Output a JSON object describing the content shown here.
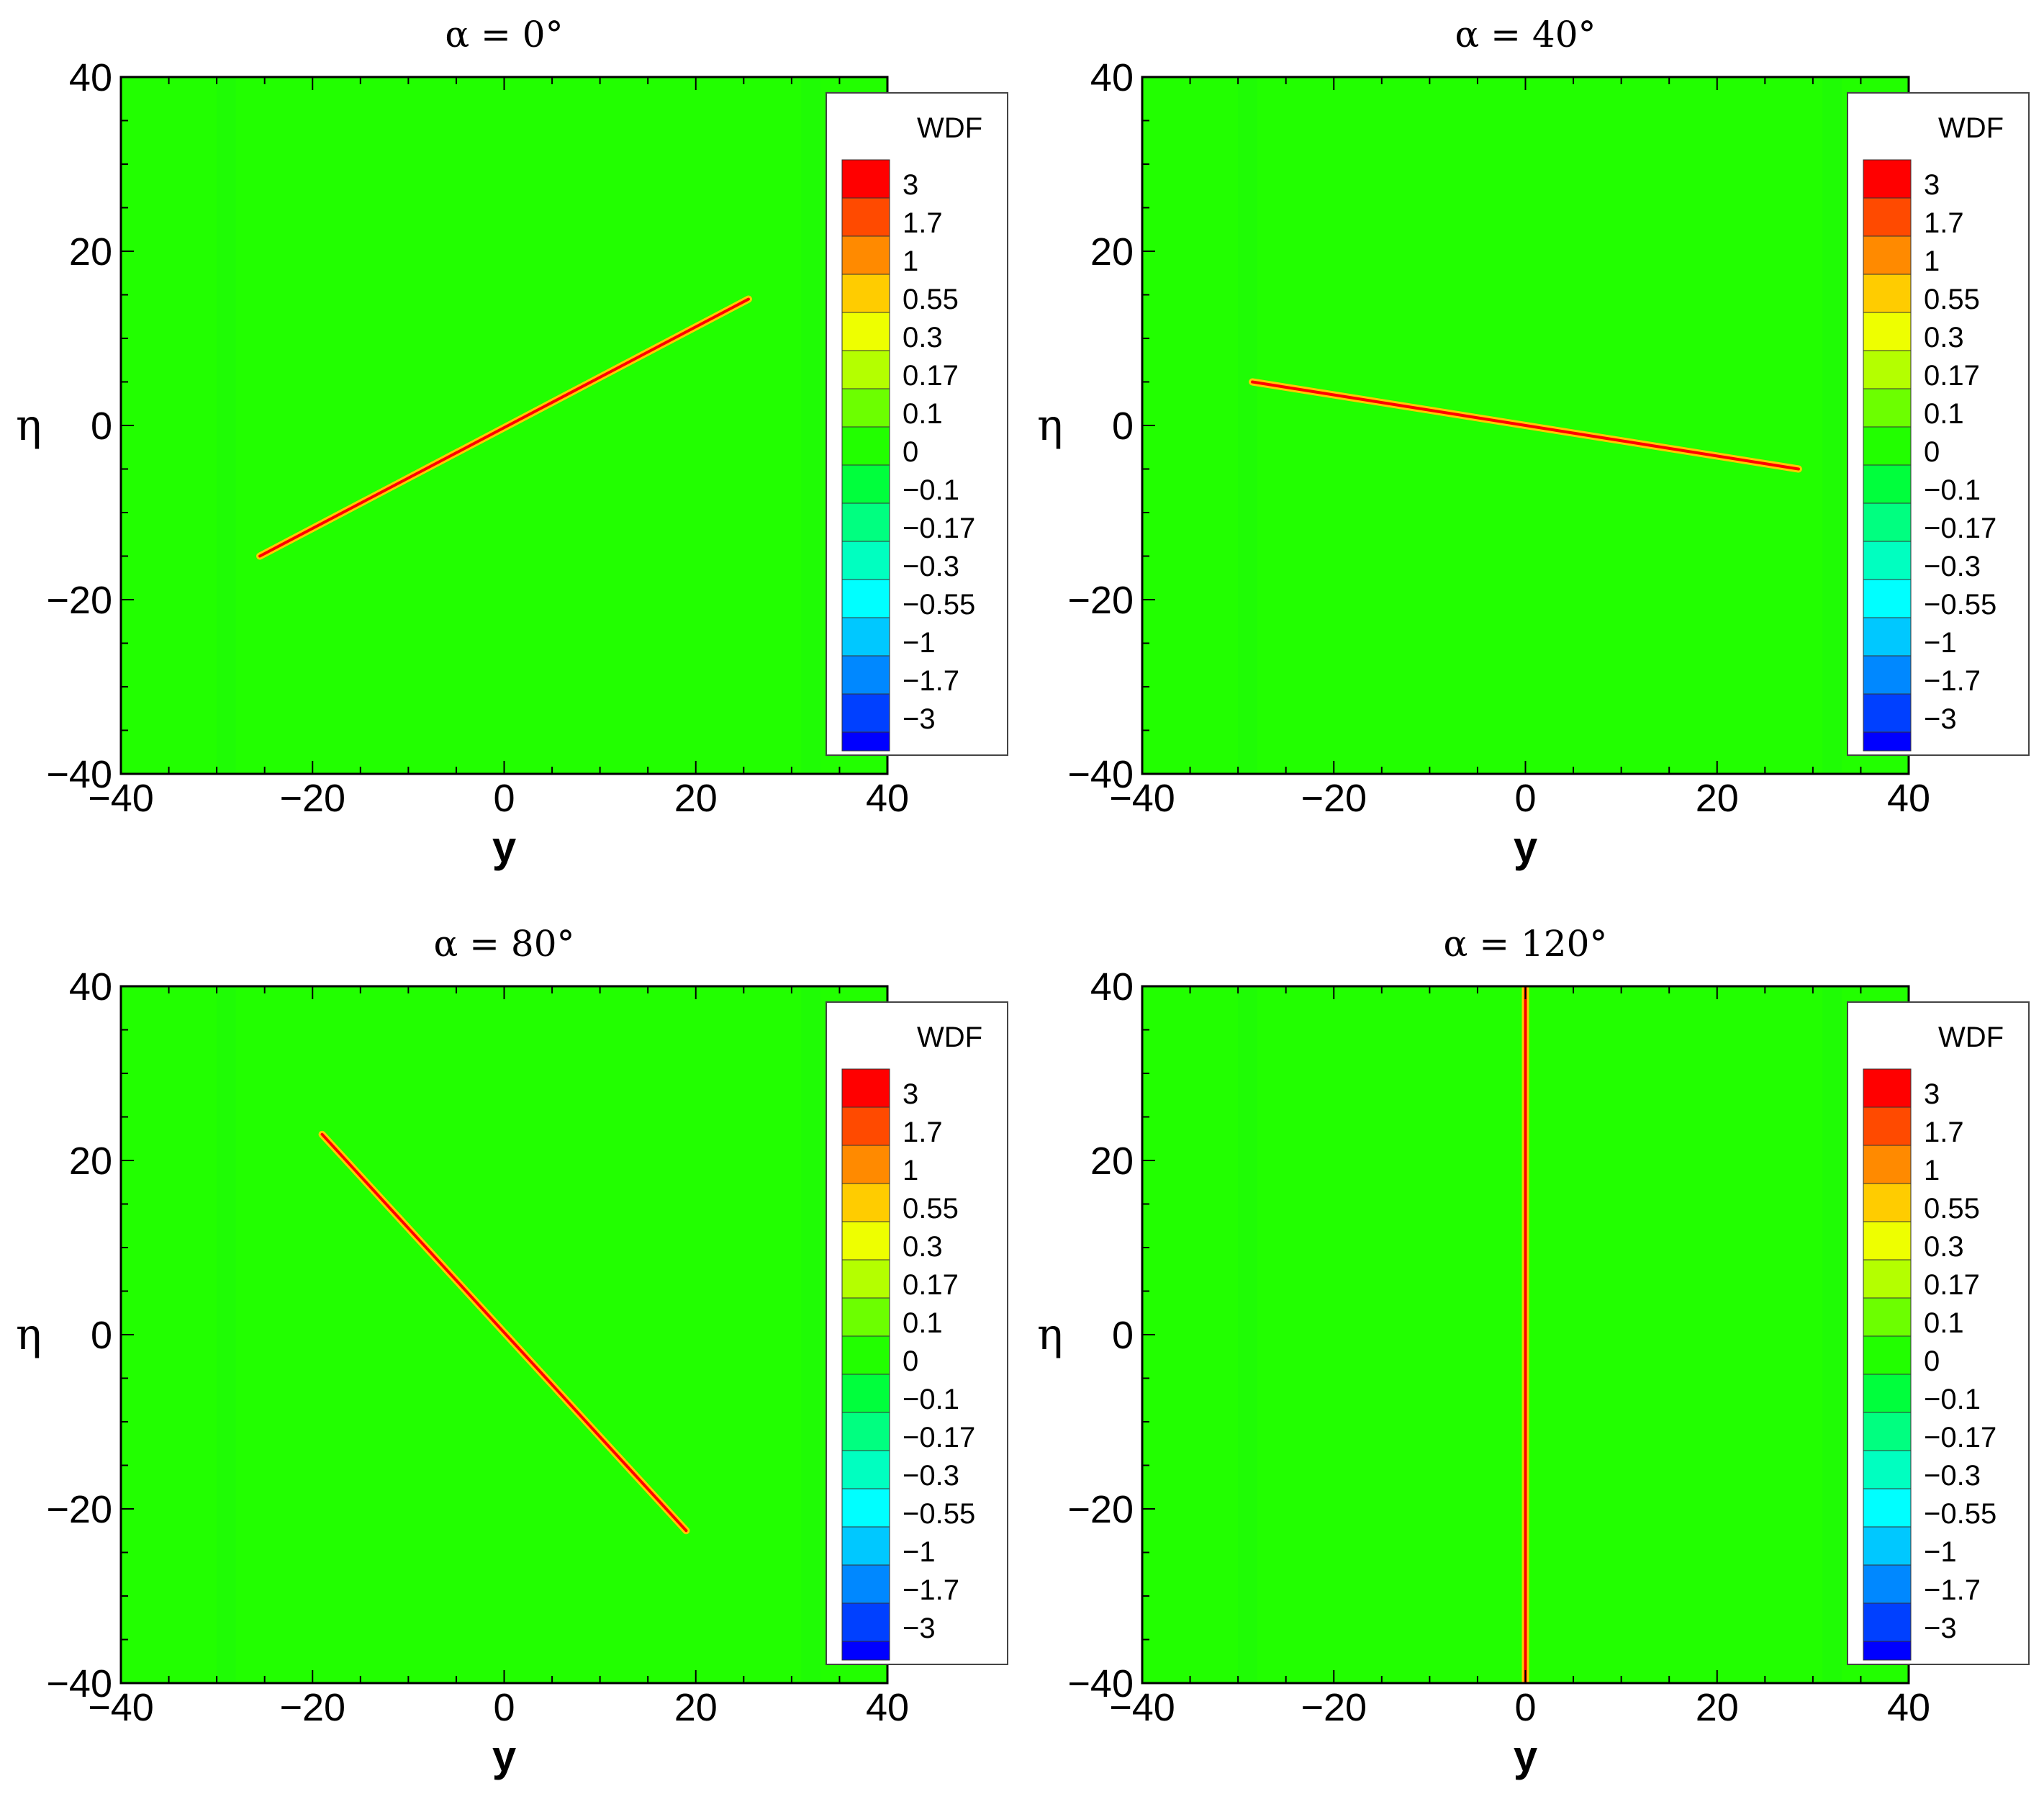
{
  "chart_data": [
    {
      "type": "heatmap",
      "title": "α = 0°",
      "xlabel": "y",
      "ylabel": "η",
      "xlim": [
        -40,
        40
      ],
      "ylim": [
        -40,
        40
      ],
      "xticks": [
        "−40",
        "−20",
        "0",
        "20",
        "40"
      ],
      "yticks": [
        "−40",
        "−20",
        "0",
        "20",
        "40"
      ],
      "background_value": 0,
      "ridge": {
        "from": [
          -25.5,
          -15
        ],
        "to": [
          25.5,
          14.5
        ]
      }
    },
    {
      "type": "heatmap",
      "title": "α = 40°",
      "xlabel": "y",
      "ylabel": "η",
      "xlim": [
        -40,
        40
      ],
      "ylim": [
        -40,
        40
      ],
      "xticks": [
        "−40",
        "−20",
        "0",
        "20",
        "40"
      ],
      "yticks": [
        "−40",
        "−20",
        "0",
        "20",
        "40"
      ],
      "background_value": 0,
      "ridge": {
        "from": [
          -28.5,
          5
        ],
        "to": [
          28.5,
          -5
        ]
      }
    },
    {
      "type": "heatmap",
      "title": "α = 80°",
      "xlabel": "y",
      "ylabel": "η",
      "xlim": [
        -40,
        40
      ],
      "ylim": [
        -40,
        40
      ],
      "xticks": [
        "−40",
        "−20",
        "0",
        "20",
        "40"
      ],
      "yticks": [
        "−40",
        "−20",
        "0",
        "20",
        "40"
      ],
      "background_value": 0,
      "ridge": {
        "from": [
          -19,
          23
        ],
        "to": [
          19,
          -22.5
        ]
      }
    },
    {
      "type": "heatmap",
      "title": "α = 120°",
      "xlabel": "y",
      "ylabel": "η",
      "xlim": [
        -40,
        40
      ],
      "ylim": [
        -40,
        40
      ],
      "xticks": [
        "−40",
        "−20",
        "0",
        "20",
        "40"
      ],
      "yticks": [
        "−40",
        "−20",
        "0",
        "20",
        "40"
      ],
      "background_value": 0,
      "ridge": {
        "from": [
          0,
          40
        ],
        "to": [
          0,
          -40
        ]
      }
    }
  ],
  "legend": {
    "title": "WDF",
    "levels": [
      {
        "label": "3",
        "color": "#ff0000"
      },
      {
        "label": "1.7",
        "color": "#ff4a00"
      },
      {
        "label": "1",
        "color": "#ff8a00"
      },
      {
        "label": "0.55",
        "color": "#ffcc00"
      },
      {
        "label": "0.3",
        "color": "#eeff00"
      },
      {
        "label": "0.17",
        "color": "#b4ff00"
      },
      {
        "label": "0.1",
        "color": "#6cff00"
      },
      {
        "label": "0",
        "color": "#22ff00"
      },
      {
        "label": "−0.1",
        "color": "#00ff3c"
      },
      {
        "label": "−0.17",
        "color": "#00ff80"
      },
      {
        "label": "−0.3",
        "color": "#00ffc0"
      },
      {
        "label": "−0.55",
        "color": "#00ffff"
      },
      {
        "label": "−1",
        "color": "#00c8ff"
      },
      {
        "label": "−1.7",
        "color": "#0088ff"
      },
      {
        "label": "−3",
        "color": "#0040ff"
      },
      {
        "label": "",
        "color": "#0000ff"
      }
    ]
  },
  "colors": {
    "field": "#22ff00",
    "band": "#1efa08",
    "ridge_outer": "#ffcc00",
    "ridge_inner": "#ff0000"
  }
}
